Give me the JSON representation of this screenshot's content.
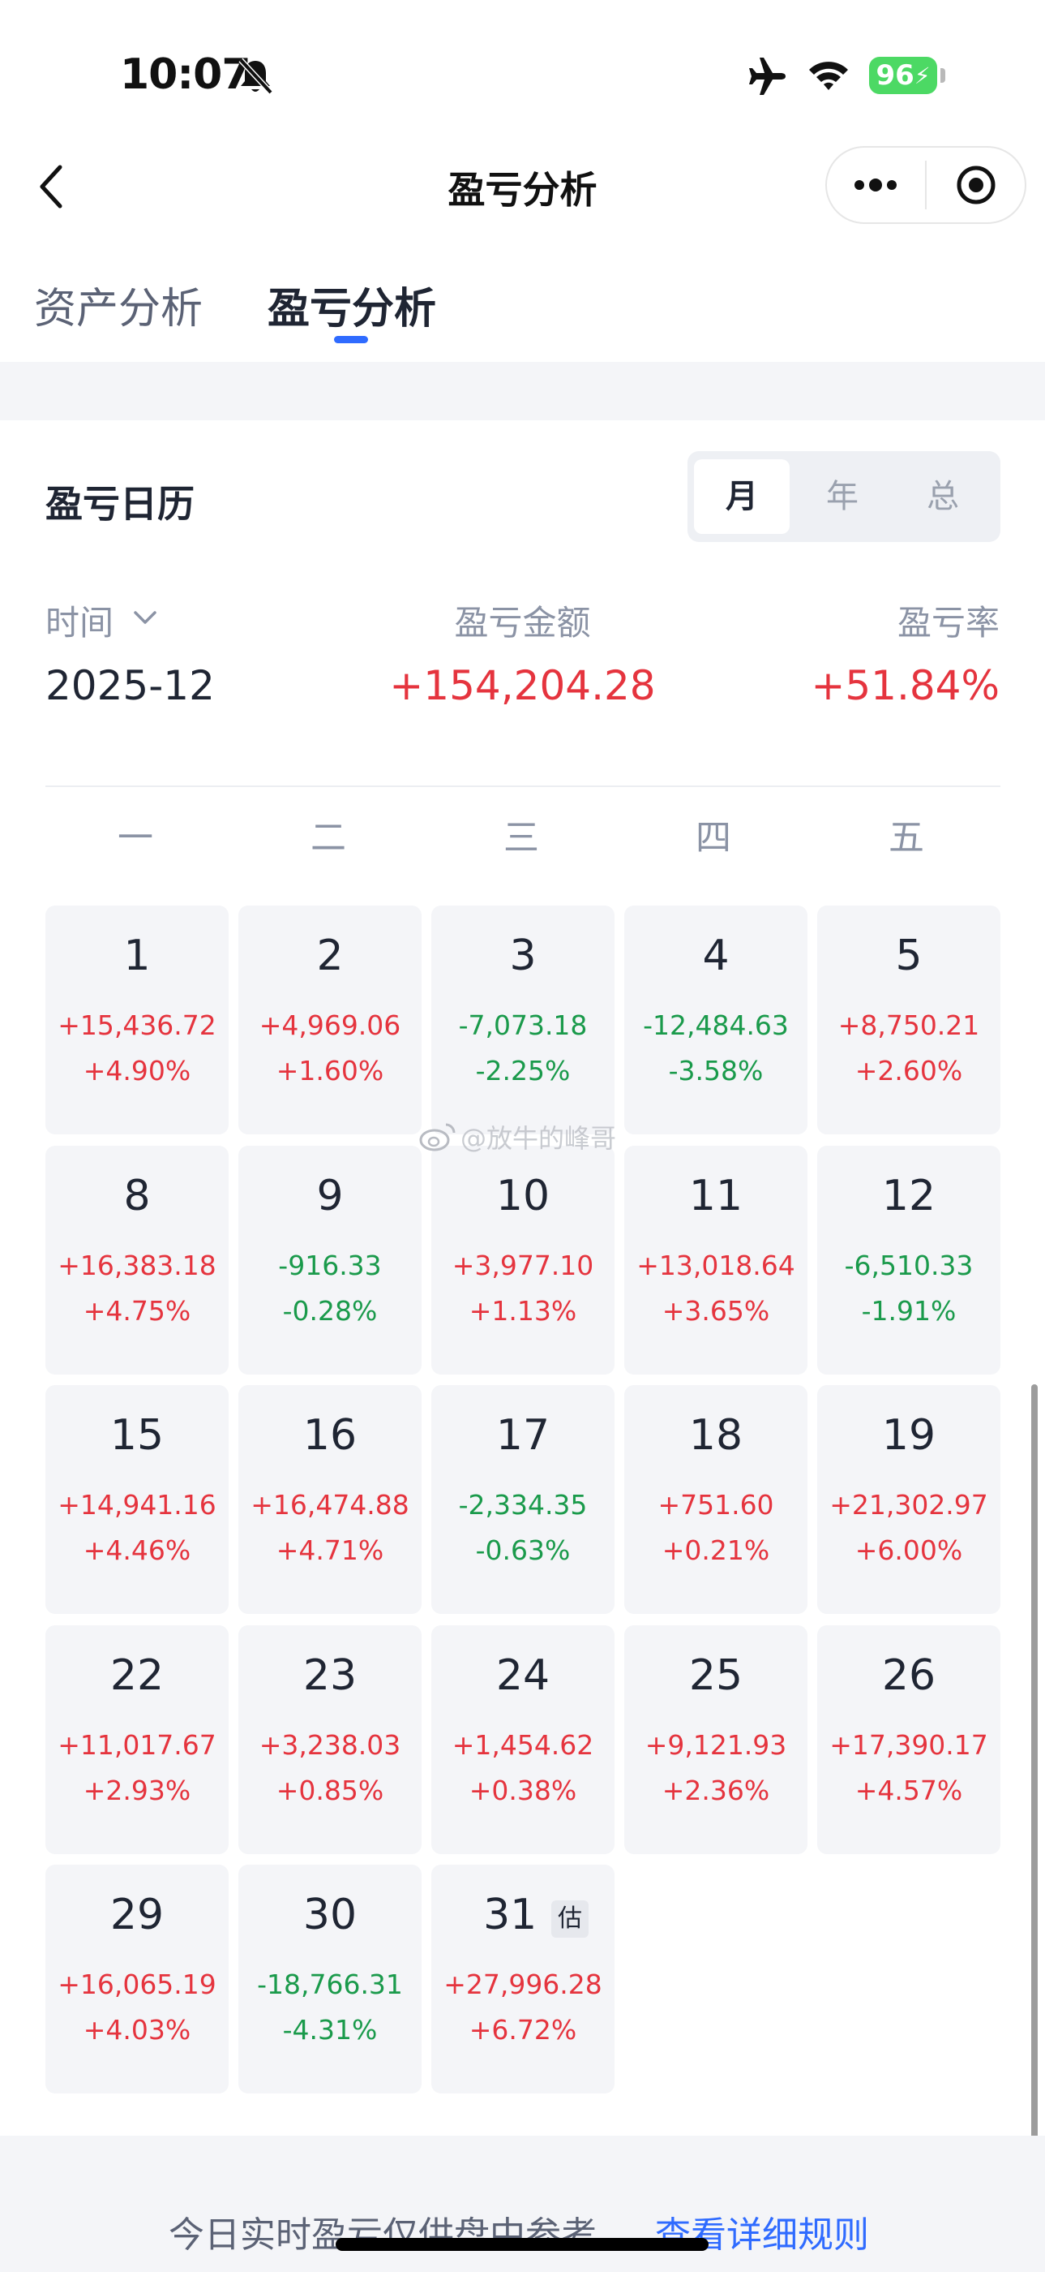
{
  "status": {
    "time": "10:07",
    "battery": "96"
  },
  "nav": {
    "title": "盈亏分析"
  },
  "tabs": [
    {
      "label": "资产分析"
    },
    {
      "label": "盈亏分析",
      "active": true
    }
  ],
  "calendar": {
    "title": "盈亏日历",
    "segments": [
      "月",
      "年",
      "总"
    ],
    "selected_segment": "月",
    "time_label": "时间",
    "amount_label": "盈亏金额",
    "rate_label": "盈亏率",
    "month": "2025-12",
    "total_amount": "+154,204.28",
    "total_rate": "+51.84%",
    "weekdays": [
      "一",
      "二",
      "三",
      "四",
      "五"
    ],
    "days": [
      {
        "day": "1",
        "amount": "+15,436.72",
        "rate": "+4.90%",
        "trend": "up"
      },
      {
        "day": "2",
        "amount": "+4,969.06",
        "rate": "+1.60%",
        "trend": "up"
      },
      {
        "day": "3",
        "amount": "-7,073.18",
        "rate": "-2.25%",
        "trend": "down"
      },
      {
        "day": "4",
        "amount": "-12,484.63",
        "rate": "-3.58%",
        "trend": "down"
      },
      {
        "day": "5",
        "amount": "+8,750.21",
        "rate": "+2.60%",
        "trend": "up"
      },
      {
        "day": "8",
        "amount": "+16,383.18",
        "rate": "+4.75%",
        "trend": "up"
      },
      {
        "day": "9",
        "amount": "-916.33",
        "rate": "-0.28%",
        "trend": "down"
      },
      {
        "day": "10",
        "amount": "+3,977.10",
        "rate": "+1.13%",
        "trend": "up"
      },
      {
        "day": "11",
        "amount": "+13,018.64",
        "rate": "+3.65%",
        "trend": "up"
      },
      {
        "day": "12",
        "amount": "-6,510.33",
        "rate": "-1.91%",
        "trend": "down"
      },
      {
        "day": "15",
        "amount": "+14,941.16",
        "rate": "+4.46%",
        "trend": "up"
      },
      {
        "day": "16",
        "amount": "+16,474.88",
        "rate": "+4.71%",
        "trend": "up"
      },
      {
        "day": "17",
        "amount": "-2,334.35",
        "rate": "-0.63%",
        "trend": "down"
      },
      {
        "day": "18",
        "amount": "+751.60",
        "rate": "+0.21%",
        "trend": "up"
      },
      {
        "day": "19",
        "amount": "+21,302.97",
        "rate": "+6.00%",
        "trend": "up"
      },
      {
        "day": "22",
        "amount": "+11,017.67",
        "rate": "+2.93%",
        "trend": "up"
      },
      {
        "day": "23",
        "amount": "+3,238.03",
        "rate": "+0.85%",
        "trend": "up"
      },
      {
        "day": "24",
        "amount": "+1,454.62",
        "rate": "+0.38%",
        "trend": "up"
      },
      {
        "day": "25",
        "amount": "+9,121.93",
        "rate": "+2.36%",
        "trend": "up"
      },
      {
        "day": "26",
        "amount": "+17,390.17",
        "rate": "+4.57%",
        "trend": "up"
      },
      {
        "day": "29",
        "amount": "+16,065.19",
        "rate": "+4.03%",
        "trend": "up"
      },
      {
        "day": "30",
        "amount": "-18,766.31",
        "rate": "-4.31%",
        "trend": "down"
      },
      {
        "day": "31",
        "amount": "+27,996.28",
        "rate": "+6.72%",
        "trend": "up",
        "badge": "估"
      }
    ]
  },
  "watermark": "@放牛的峰哥",
  "footer": {
    "note": "今日实时盈亏仅供盘中参考",
    "link": "查看详细规则"
  },
  "colors": {
    "up": "#e5343e",
    "down": "#1a9a4b",
    "accent": "#2f6bff",
    "cell_bg": "#f4f5f8"
  }
}
